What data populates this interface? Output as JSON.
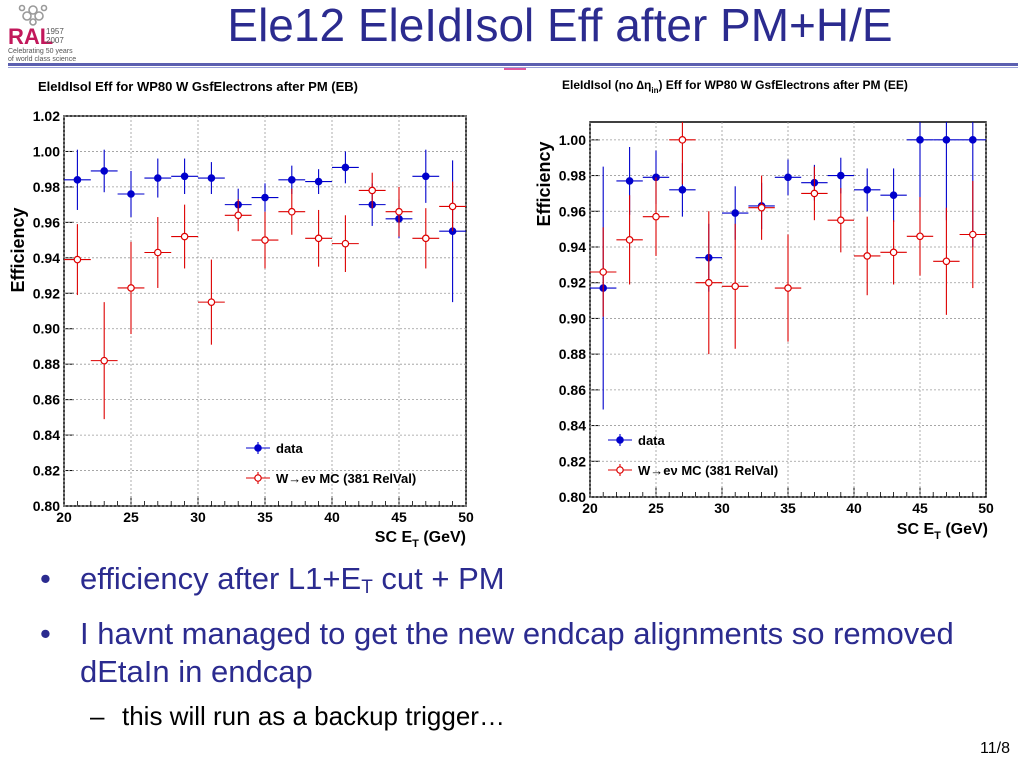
{
  "slide": {
    "title": "Ele12 EleIdIsol Eff after PM+H/E",
    "page_number": "11/8"
  },
  "logo": {
    "letters": "RAL",
    "years": [
      "1957",
      "2007"
    ],
    "line1": "Celebrating 50 years",
    "line2": "of world class science",
    "color": "#c2185b"
  },
  "bullets": [
    {
      "text_pre": "efficiency after L1+E",
      "sub": "T",
      "text_post": " cut + PM"
    },
    {
      "text": "I havnt managed to get the new endcap alignments so removed dEtaIn in endcap"
    }
  ],
  "sub_bullets": [
    {
      "text": "this will run as a backup trigger…"
    }
  ],
  "chart_data": [
    {
      "type": "scatter",
      "title": "EleIdIsol Eff for WP80 W GsfElectrons after PM (EB)",
      "xlabel": "SC E",
      "xlabel_sub": "T",
      "xlabel_unit": " (GeV)",
      "ylabel": "Efficiency",
      "xlim": [
        20,
        50
      ],
      "ylim": [
        0.8,
        1.02
      ],
      "xticks": [
        "20",
        "25",
        "30",
        "35",
        "40",
        "45",
        "50"
      ],
      "yticks": [
        "0.80",
        "0.82",
        "0.84",
        "0.86",
        "0.88",
        "0.90",
        "0.92",
        "0.94",
        "0.96",
        "0.98",
        "1.00",
        "1.02"
      ],
      "grid": true,
      "legend_position": "bottom-right",
      "series": [
        {
          "name": "data",
          "color": "#0000cc",
          "marker": "filled-circle",
          "x": [
            21,
            23,
            25,
            27,
            29,
            31,
            33,
            35,
            37,
            39,
            41,
            43,
            45,
            47,
            49
          ],
          "y": [
            0.984,
            0.989,
            0.976,
            0.985,
            0.986,
            0.985,
            0.97,
            0.974,
            0.984,
            0.983,
            0.991,
            0.97,
            0.962,
            0.986,
            0.955
          ],
          "err": [
            0.017,
            0.012,
            0.013,
            0.011,
            0.01,
            0.009,
            0.009,
            0.008,
            0.008,
            0.007,
            0.009,
            0.012,
            0.011,
            0.015,
            0.04
          ]
        },
        {
          "name": "W→eν MC (381 RelVal)",
          "color": "#dd0000",
          "marker": "open-circle",
          "x": [
            21,
            23,
            25,
            27,
            29,
            31,
            33,
            35,
            37,
            39,
            41,
            43,
            45,
            47,
            49
          ],
          "y": [
            0.939,
            0.882,
            0.923,
            0.943,
            0.952,
            0.915,
            0.964,
            0.95,
            0.966,
            0.951,
            0.948,
            0.978,
            0.966,
            0.951,
            0.969
          ],
          "err": [
            0.02,
            0.033,
            0.026,
            0.02,
            0.018,
            0.024,
            0.009,
            0.016,
            0.013,
            0.016,
            0.016,
            0.01,
            0.014,
            0.017,
            0.014
          ]
        }
      ]
    },
    {
      "type": "scatter",
      "title_pre": "EleIdIsol (no ",
      "title_sym": "∆η",
      "title_sub": "in",
      "title_post": ") Eff for WP80 W GsfElectrons after PM (EE)",
      "xlabel": "SC E",
      "xlabel_sub": "T",
      "xlabel_unit": " (GeV)",
      "ylabel": "Efficiency",
      "xlim": [
        20,
        50
      ],
      "ylim": [
        0.8,
        1.01
      ],
      "xticks": [
        "20",
        "25",
        "30",
        "35",
        "40",
        "45",
        "50"
      ],
      "yticks": [
        "0.80",
        "0.82",
        "0.84",
        "0.86",
        "0.88",
        "0.90",
        "0.92",
        "0.94",
        "0.96",
        "0.98",
        "1.00"
      ],
      "grid": true,
      "legend_position": "bottom-left",
      "series": [
        {
          "name": "data",
          "color": "#0000cc",
          "marker": "filled-circle",
          "x": [
            21,
            23,
            25,
            27,
            29,
            31,
            33,
            35,
            37,
            39,
            41,
            43,
            45,
            47,
            49
          ],
          "y": [
            0.917,
            0.977,
            0.979,
            0.972,
            0.934,
            0.959,
            0.963,
            0.979,
            0.976,
            0.98,
            0.972,
            0.969,
            1.0,
            1.0,
            1.0
          ],
          "err": [
            0.068,
            0.019,
            0.015,
            0.015,
            0.019,
            0.015,
            0.013,
            0.01,
            0.01,
            0.01,
            0.012,
            0.015,
            0.04,
            0.045,
            0.06
          ]
        },
        {
          "name": "W→eν MC (381 RelVal)",
          "color": "#dd0000",
          "marker": "open-circle",
          "x": [
            21,
            23,
            25,
            27,
            29,
            31,
            33,
            35,
            37,
            39,
            41,
            43,
            45,
            47,
            49
          ],
          "y": [
            0.926,
            0.944,
            0.957,
            1.0,
            0.92,
            0.918,
            0.962,
            0.917,
            0.97,
            0.955,
            0.935,
            0.937,
            0.946,
            0.932,
            0.947
          ],
          "err": [
            0.025,
            0.025,
            0.022,
            0.025,
            0.04,
            0.035,
            0.018,
            0.03,
            0.015,
            0.018,
            0.022,
            0.018,
            0.022,
            0.03,
            0.03
          ]
        }
      ]
    }
  ]
}
